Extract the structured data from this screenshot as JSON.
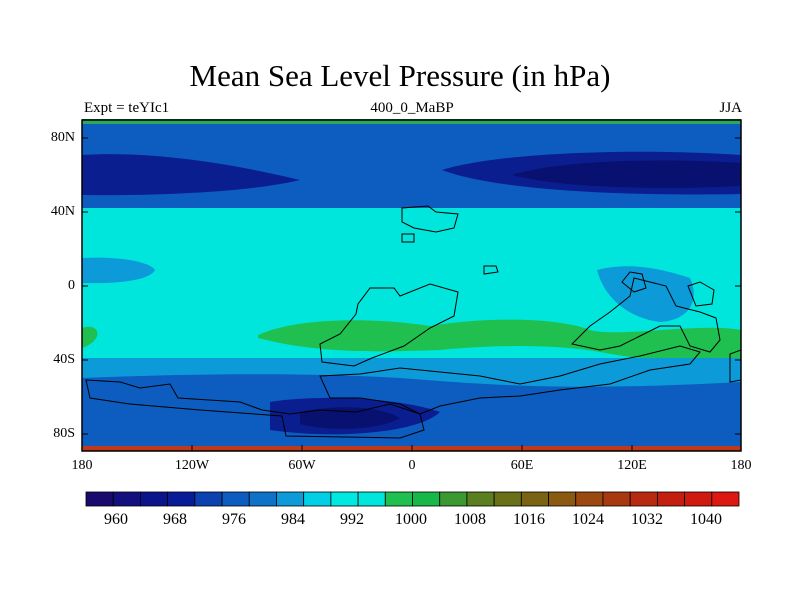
{
  "plot": {
    "title": "Mean Sea Level Pressure (in hPa)",
    "left_label": "Expt = teYIc1",
    "center_label": "400_0_MaBP",
    "right_label": "JJA",
    "lat_ticks": [
      "80N",
      "40N",
      "0",
      "40S",
      "80S"
    ],
    "lon_ticks": [
      "180",
      "120W",
      "60W",
      "0",
      "60E",
      "120E",
      "180"
    ]
  },
  "colorbar": {
    "labels": [
      "960",
      "968",
      "976",
      "984",
      "992",
      "1000",
      "1008",
      "1016",
      "1024",
      "1032",
      "1040"
    ],
    "colors": [
      "#1a0a6e",
      "#12107e",
      "#0c148c",
      "#081c98",
      "#0b42b0",
      "#0d5cbf",
      "#0e72c8",
      "#0c9ad8",
      "#00cfe6",
      "#00e8e0",
      "#00e6dc",
      "#20c050",
      "#18b848",
      "#3c9830",
      "#5a7e20",
      "#6a7018",
      "#7a6414",
      "#8a5a10",
      "#9a4a10",
      "#a83810",
      "#b82a10",
      "#c41e10",
      "#d01a10",
      "#dc1810"
    ]
  },
  "map_colors": {
    "band_dark": "#0b1e8f",
    "band_mid": "#0d5cbf",
    "band_light": "#0c9ad8",
    "cyan": "#00e6dc",
    "green": "#20c050",
    "low_core": "#081070",
    "top_strip": "#2ca85a",
    "bottom_strip": "#c03a1a"
  }
}
